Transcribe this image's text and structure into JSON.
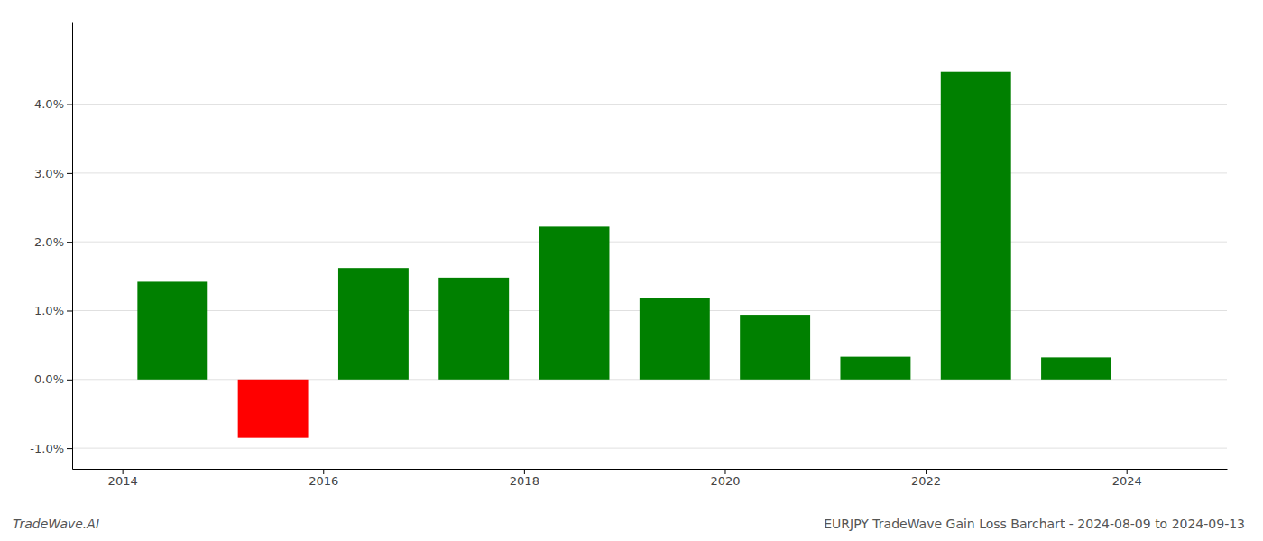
{
  "chart_data": {
    "type": "bar",
    "title": "EURJPY TradeWave Gain Loss Barchart - 2024-08-09 to 2024-09-13",
    "annotations": [
      "TradeWave.AI"
    ],
    "x": [
      2014.5,
      2015.5,
      2016.5,
      2017.5,
      2018.5,
      2019.5,
      2020.5,
      2021.5,
      2022.5,
      2023.5
    ],
    "values": [
      0.0142,
      -0.0085,
      0.0162,
      0.0148,
      0.0222,
      0.0118,
      0.0094,
      0.0033,
      0.0447,
      0.0032
    ],
    "colors": [
      "#008000",
      "#ff0000",
      "#008000",
      "#008000",
      "#008000",
      "#008000",
      "#008000",
      "#008000",
      "#008000",
      "#008000"
    ],
    "xlim": [
      2013.5,
      2025.0
    ],
    "xticks": [
      2014,
      2016,
      2018,
      2020,
      2022,
      2024
    ],
    "ylim": [
      -0.013,
      0.052
    ],
    "yticks": [
      {
        "value": -0.01,
        "label": "-1.0%"
      },
      {
        "value": 0.0,
        "label": "0.0%"
      },
      {
        "value": 0.01,
        "label": "1.0%"
      },
      {
        "value": 0.02,
        "label": "2.0%"
      },
      {
        "value": 0.03,
        "label": "3.0%"
      },
      {
        "value": 0.04,
        "label": "4.0%"
      }
    ],
    "grid": true
  }
}
